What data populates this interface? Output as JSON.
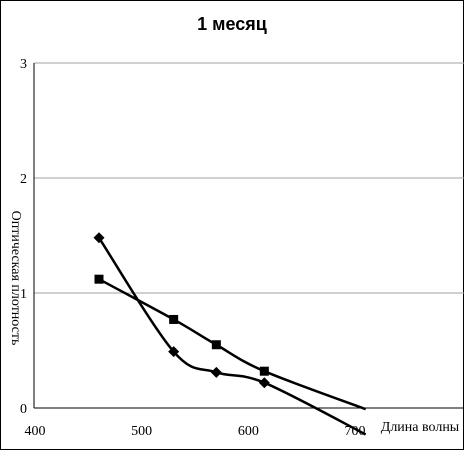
{
  "chart_data": {
    "type": "line",
    "title": "1 месяц",
    "xlabel": "Длина волны",
    "ylabel": "Оптическая плотность",
    "xlim": [
      400,
      700
    ],
    "ylim": [
      0,
      3
    ],
    "x_ticks": [
      "400",
      "500",
      "600",
      "700"
    ],
    "y_ticks": [
      "0",
      "1",
      "2",
      "3"
    ],
    "grid": "horizontal",
    "legend": "none",
    "colors": {
      "series": "#000000",
      "grid": "#a0a0a0",
      "frame": "#000000",
      "background": "#ffffff"
    },
    "series": [
      {
        "marker": "diamond",
        "x": [
          460,
          530,
          570,
          615
        ],
        "y": [
          1.48,
          0.49,
          0.31,
          0.22
        ],
        "trend_line": {
          "x": [
            460,
            530,
            570,
            615,
            710
          ],
          "y": [
            1.48,
            0.49,
            0.31,
            0.22,
            -0.23
          ]
        }
      },
      {
        "marker": "square",
        "x": [
          460,
          530,
          570,
          615
        ],
        "y": [
          1.12,
          0.77,
          0.55,
          0.32
        ],
        "trend_line": {
          "x": [
            460,
            530,
            570,
            615,
            710
          ],
          "y": [
            1.12,
            0.77,
            0.55,
            0.32,
            -0.01
          ]
        }
      }
    ]
  }
}
